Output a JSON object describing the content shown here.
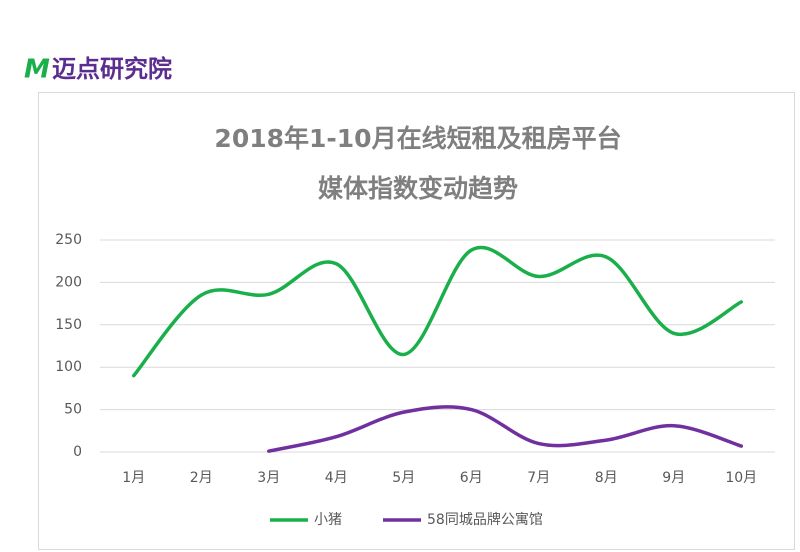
{
  "logo": {
    "mark": "M",
    "text": "迈点研究院"
  },
  "chart_data": {
    "type": "line",
    "title": [
      "2018年1-10月在线短租及租房平台",
      "媒体指数变动趋势"
    ],
    "categories": [
      "1月",
      "2月",
      "3月",
      "4月",
      "5月",
      "6月",
      "7月",
      "8月",
      "9月",
      "10月"
    ],
    "series": [
      {
        "name": "小猪",
        "color": "#1aaf4b",
        "values": [
          90,
          185,
          186,
          222,
          115,
          238,
          207,
          230,
          140,
          177
        ]
      },
      {
        "name": "58同城品牌公寓馆",
        "color": "#7030a0",
        "values": [
          null,
          null,
          1,
          18,
          47,
          50,
          10,
          14,
          31,
          7
        ]
      }
    ],
    "ylim": [
      0,
      250
    ],
    "yticks": [
      0,
      50,
      100,
      150,
      200,
      250
    ],
    "grid": true,
    "smooth": true,
    "legend": "bottom"
  }
}
